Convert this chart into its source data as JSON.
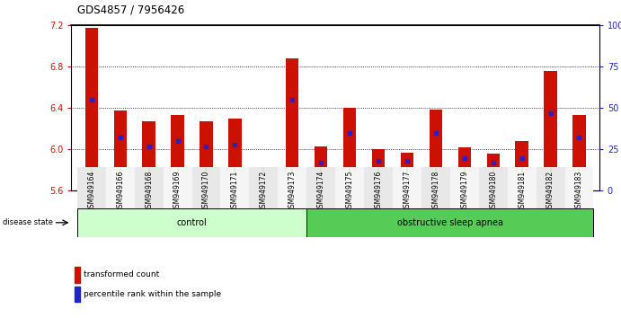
{
  "title": "GDS4857 / 7956426",
  "samples": [
    "GSM949164",
    "GSM949166",
    "GSM949168",
    "GSM949169",
    "GSM949170",
    "GSM949171",
    "GSM949172",
    "GSM949173",
    "GSM949174",
    "GSM949175",
    "GSM949176",
    "GSM949177",
    "GSM949178",
    "GSM949179",
    "GSM949180",
    "GSM949181",
    "GSM949182",
    "GSM949183"
  ],
  "red_values": [
    7.18,
    6.38,
    6.27,
    6.33,
    6.27,
    6.3,
    5.68,
    6.88,
    6.03,
    6.4,
    6.0,
    5.97,
    6.39,
    6.02,
    5.96,
    6.08,
    6.76,
    6.33
  ],
  "blue_pct": [
    55,
    32,
    27,
    30,
    27,
    28,
    12,
    55,
    17,
    35,
    18,
    18,
    35,
    20,
    17,
    20,
    47,
    32
  ],
  "ymin": 5.6,
  "ymax": 7.2,
  "yticks": [
    5.6,
    6.0,
    6.4,
    6.8,
    7.2
  ],
  "right_yticks": [
    0,
    25,
    50,
    75,
    100
  ],
  "right_yticklabels": [
    "0",
    "25",
    "50",
    "75",
    "100%"
  ],
  "bar_color": "#cc1100",
  "dot_color": "#2222cc",
  "control_color": "#ccffcc",
  "apnea_color": "#55cc55",
  "ctrl_count": 8,
  "apnea_count": 10,
  "legend_red_label": "transformed count",
  "legend_blue_label": "percentile rank within the sample"
}
